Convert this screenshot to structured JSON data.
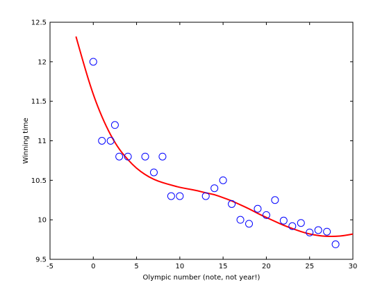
{
  "chart_data": {
    "type": "scatter",
    "xlabel": "Olympic number (note, not year!)",
    "ylabel": "Winning time",
    "xlim": [
      -5,
      30
    ],
    "ylim": [
      9.5,
      12.5
    ],
    "xticks": [
      -5,
      0,
      5,
      10,
      15,
      20,
      25,
      30
    ],
    "yticks": [
      9.5,
      10,
      10.5,
      11,
      11.5,
      12,
      12.5
    ],
    "xtick_labels": [
      "-5",
      "0",
      "5",
      "10",
      "15",
      "20",
      "25",
      "30"
    ],
    "ytick_labels": [
      "9.5",
      "10",
      "10.5",
      "11",
      "11.5",
      "12",
      "12.5"
    ],
    "grid": false,
    "series": [
      {
        "kind": "scatter",
        "marker": "circle-open",
        "color": "#0000ff",
        "points": [
          [
            0,
            12.0
          ],
          [
            1,
            11.0
          ],
          [
            2,
            11.0
          ],
          [
            2.5,
            11.2
          ],
          [
            3,
            10.8
          ],
          [
            4,
            10.8
          ],
          [
            6,
            10.8
          ],
          [
            7,
            10.6
          ],
          [
            8,
            10.8
          ],
          [
            9,
            10.3
          ],
          [
            10,
            10.3
          ],
          [
            13,
            10.3
          ],
          [
            14,
            10.4
          ],
          [
            15,
            10.5
          ],
          [
            16,
            10.2
          ],
          [
            17,
            10.0
          ],
          [
            18,
            9.95
          ],
          [
            19,
            10.14
          ],
          [
            20,
            10.06
          ],
          [
            21,
            10.25
          ],
          [
            22,
            9.99
          ],
          [
            23,
            9.92
          ],
          [
            24,
            9.96
          ],
          [
            25,
            9.84
          ],
          [
            26,
            9.87
          ],
          [
            27,
            9.85
          ],
          [
            28,
            9.69
          ]
        ]
      },
      {
        "kind": "line",
        "color": "#ff0000",
        "points": [
          [
            -2,
            12.32
          ],
          [
            -1,
            11.93
          ],
          [
            0,
            11.58
          ],
          [
            1,
            11.3
          ],
          [
            2,
            11.07
          ],
          [
            3,
            10.89
          ],
          [
            4,
            10.76
          ],
          [
            5,
            10.65
          ],
          [
            6,
            10.57
          ],
          [
            7,
            10.51
          ],
          [
            8,
            10.47
          ],
          [
            9,
            10.44
          ],
          [
            10,
            10.41
          ],
          [
            11,
            10.39
          ],
          [
            12,
            10.37
          ],
          [
            13,
            10.34
          ],
          [
            14,
            10.32
          ],
          [
            15,
            10.28
          ],
          [
            16,
            10.24
          ],
          [
            17,
            10.19
          ],
          [
            18,
            10.14
          ],
          [
            19,
            10.08
          ],
          [
            20,
            10.03
          ],
          [
            21,
            9.98
          ],
          [
            22,
            9.93
          ],
          [
            23,
            9.89
          ],
          [
            24,
            9.85
          ],
          [
            25,
            9.82
          ],
          [
            26,
            9.8
          ],
          [
            27,
            9.79
          ],
          [
            28,
            9.79
          ],
          [
            29,
            9.8
          ],
          [
            30,
            9.82
          ]
        ]
      }
    ]
  }
}
